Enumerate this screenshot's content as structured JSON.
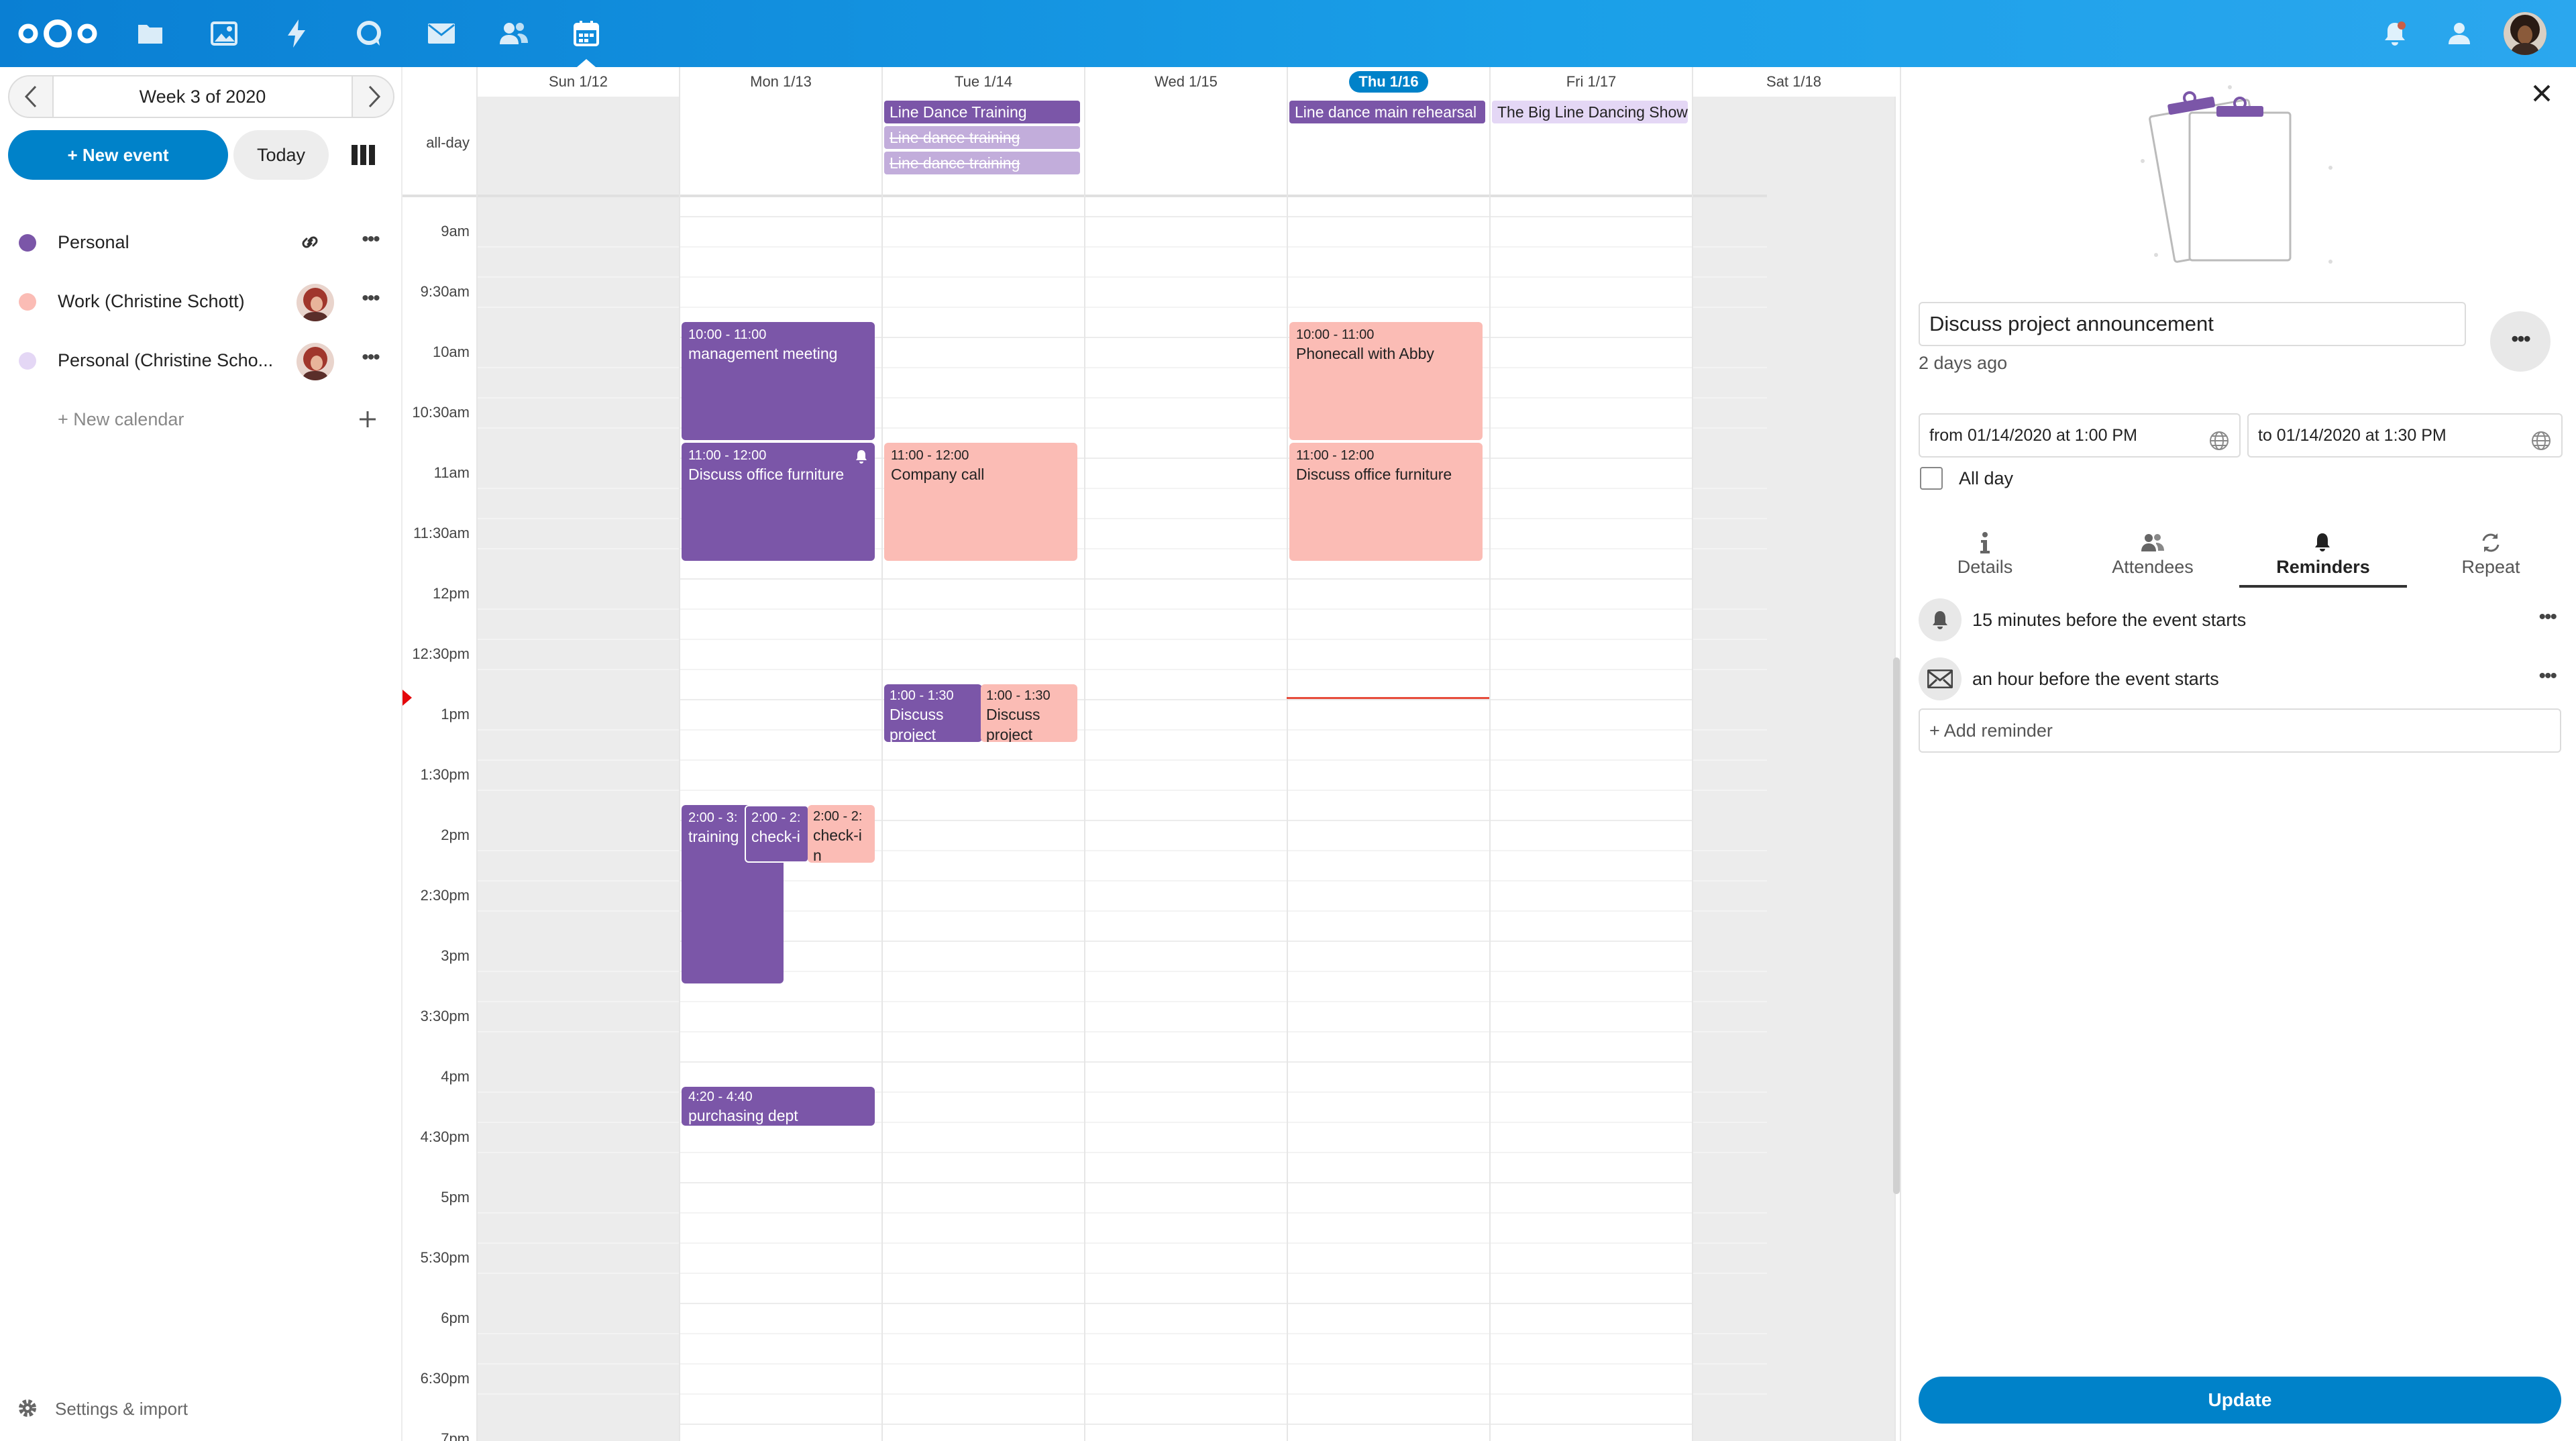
{
  "header": {
    "apps": [
      {
        "name": "nextcloud-logo-icon"
      },
      {
        "name": "files-icon"
      },
      {
        "name": "photos-icon"
      },
      {
        "name": "activity-icon"
      },
      {
        "name": "talk-icon"
      },
      {
        "name": "mail-icon"
      },
      {
        "name": "contacts-icon"
      },
      {
        "name": "calendar-icon"
      }
    ],
    "right_icons": [
      "notifications-icon",
      "contacts-menu-icon",
      "user-avatar"
    ]
  },
  "sidebar": {
    "week_label": "Week 3 of 2020",
    "new_event": "+ New event",
    "today": "Today",
    "calendars": [
      {
        "name": "Personal",
        "color": "#7b56a8"
      },
      {
        "name": "Work (Christine Schott)",
        "color": "#fbbcb5"
      },
      {
        "name": "Personal (Christine Scho...",
        "color": "#e4d7f5"
      }
    ],
    "new_calendar": "+ New calendar",
    "settings": "Settings & import"
  },
  "calendar": {
    "days": [
      "Sun 1/12",
      "Mon 1/13",
      "Tue 1/14",
      "Wed 1/15",
      "Thu 1/16",
      "Fri 1/17",
      "Sat 1/18"
    ],
    "today_index": 4,
    "allday_label": "all-day",
    "times": [
      "9am",
      "9:30am",
      "10am",
      "10:30am",
      "11am",
      "11:30am",
      "12pm",
      "12:30pm",
      "1pm",
      "1:30pm",
      "2pm",
      "2:30pm",
      "3pm",
      "3:30pm",
      "4pm",
      "4:30pm",
      "5pm",
      "5:30pm",
      "6pm",
      "6:30pm",
      "7pm"
    ],
    "allday_events": [
      {
        "title": "Line Dance Training",
        "strike": false
      },
      {
        "title": "Line dance training",
        "strike": true
      },
      {
        "title": "Line dance training",
        "strike": true
      },
      {
        "title": "Line dance main rehearsal",
        "strike": false
      },
      {
        "title": "The Big Line Dancing Show",
        "strike": false
      }
    ],
    "events": {
      "mon_mgmt": {
        "time": "10:00 - 11:00",
        "title": "management meeting"
      },
      "mon_furn": {
        "time": "11:00 - 12:00",
        "title": "Discuss office furniture"
      },
      "mon_train": {
        "time": "2:00 - 3:",
        "title": "training"
      },
      "mon_check1": {
        "time": "2:00 - 2:",
        "title": "check-i"
      },
      "mon_check2": {
        "time": "2:00 - 2:",
        "title": "check-in"
      },
      "mon_purch": {
        "time": "4:20 - 4:40",
        "title": "purchasing dept"
      },
      "tue_company": {
        "time": "11:00 - 12:00",
        "title": "Company call"
      },
      "tue_disc1": {
        "time": "1:00 - 1:30",
        "title": "Discuss project announcement"
      },
      "tue_disc2": {
        "time": "1:00 - 1:30",
        "title": "Discuss project"
      },
      "thu_phone": {
        "time": "10:00 - 11:00",
        "title": "Phonecall with Abby"
      },
      "thu_furn": {
        "time": "11:00 - 12:00",
        "title": "Discuss office furniture"
      }
    }
  },
  "details": {
    "title_value": "Discuss project announcement",
    "modified": "2 days ago",
    "from": "from 01/14/2020 at 1:00 PM",
    "to": "to 01/14/2020 at 1:30 PM",
    "all_day": "All day",
    "tabs": [
      "Details",
      "Attendees",
      "Reminders",
      "Repeat"
    ],
    "active_tab": "Reminders",
    "reminders": [
      {
        "text": "15 minutes before the event starts",
        "icon": "bell-icon"
      },
      {
        "text": "an hour before the event starts",
        "icon": "envelope-icon"
      }
    ],
    "add_reminder": "+ Add reminder",
    "update": "Update"
  },
  "colors": {
    "primary": "#0082c9",
    "event_purple": "#7b56a8",
    "event_pink": "#fbbcb5",
    "today_line": "#e74c3c"
  }
}
